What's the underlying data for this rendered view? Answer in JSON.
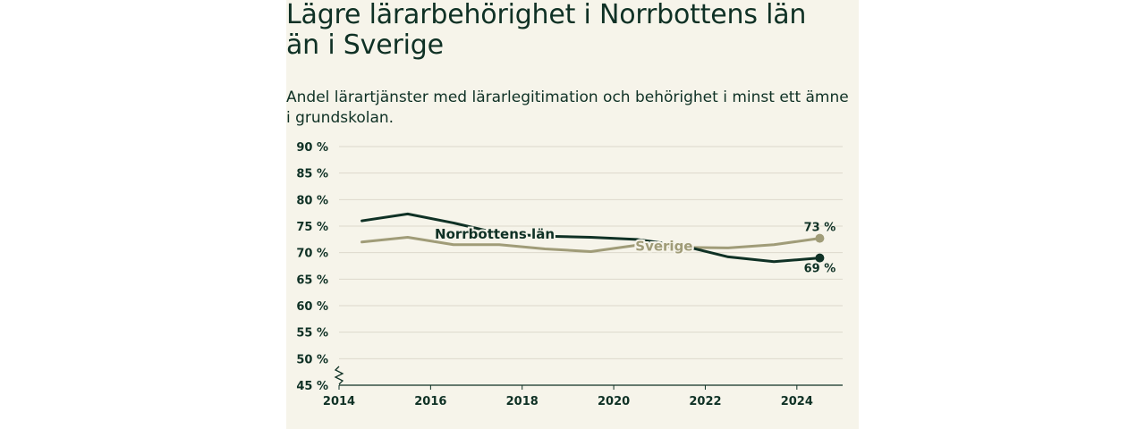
{
  "header": {
    "title": "Lägre lärarbehörighet i Norrbottens län än i Sverige",
    "subtitle": "Andel lärartjänster med lärarlegitimation och behörighet i minst ett ämne i grundskolan."
  },
  "colors": {
    "background": "#f6f4ea",
    "norrbotten": "#0f3125",
    "sverige": "#a09c78",
    "grid": "#dcd9cc",
    "axis": "#0f3125"
  },
  "chart_data": {
    "type": "line",
    "title": "Lägre lärarbehörighet i Norrbottens län än i Sverige",
    "subtitle": "Andel lärartjänster med lärarlegitimation och behörighet i minst ett ämne i grundskolan.",
    "xlabel": "",
    "ylabel": "",
    "x": [
      2014.5,
      2015.5,
      2016.5,
      2017.5,
      2018.5,
      2019.5,
      2020.5,
      2021.5,
      2022.5,
      2023.5,
      2024.5
    ],
    "xlim": [
      2014,
      2025
    ],
    "ylim": [
      45,
      90
    ],
    "y_axis_break": true,
    "grid": true,
    "x_ticks": [
      2014,
      2016,
      2018,
      2020,
      2022,
      2024
    ],
    "x_tick_labels": [
      "2014",
      "2016",
      "2018",
      "2020",
      "2022",
      "2024"
    ],
    "y_ticks": [
      45,
      50,
      55,
      60,
      65,
      70,
      75,
      80,
      85,
      90
    ],
    "y_tick_labels": [
      "45 %",
      "50 %",
      "55 %",
      "60 %",
      "65 %",
      "70 %",
      "75 %",
      "80 %",
      "85 %",
      "90 %"
    ],
    "series": [
      {
        "name": "Norrbottens län",
        "color": "#0f3125",
        "values": [
          76.0,
          77.3,
          75.6,
          73.6,
          73.1,
          72.9,
          72.5,
          71.3,
          69.2,
          68.3,
          69.0
        ],
        "end_label": "69 %"
      },
      {
        "name": "Sverige",
        "color": "#a09c78",
        "values": [
          72.0,
          72.9,
          71.5,
          71.5,
          70.7,
          70.2,
          71.4,
          71.0,
          70.9,
          71.5,
          72.7
        ],
        "end_label": "73 %"
      }
    ]
  }
}
